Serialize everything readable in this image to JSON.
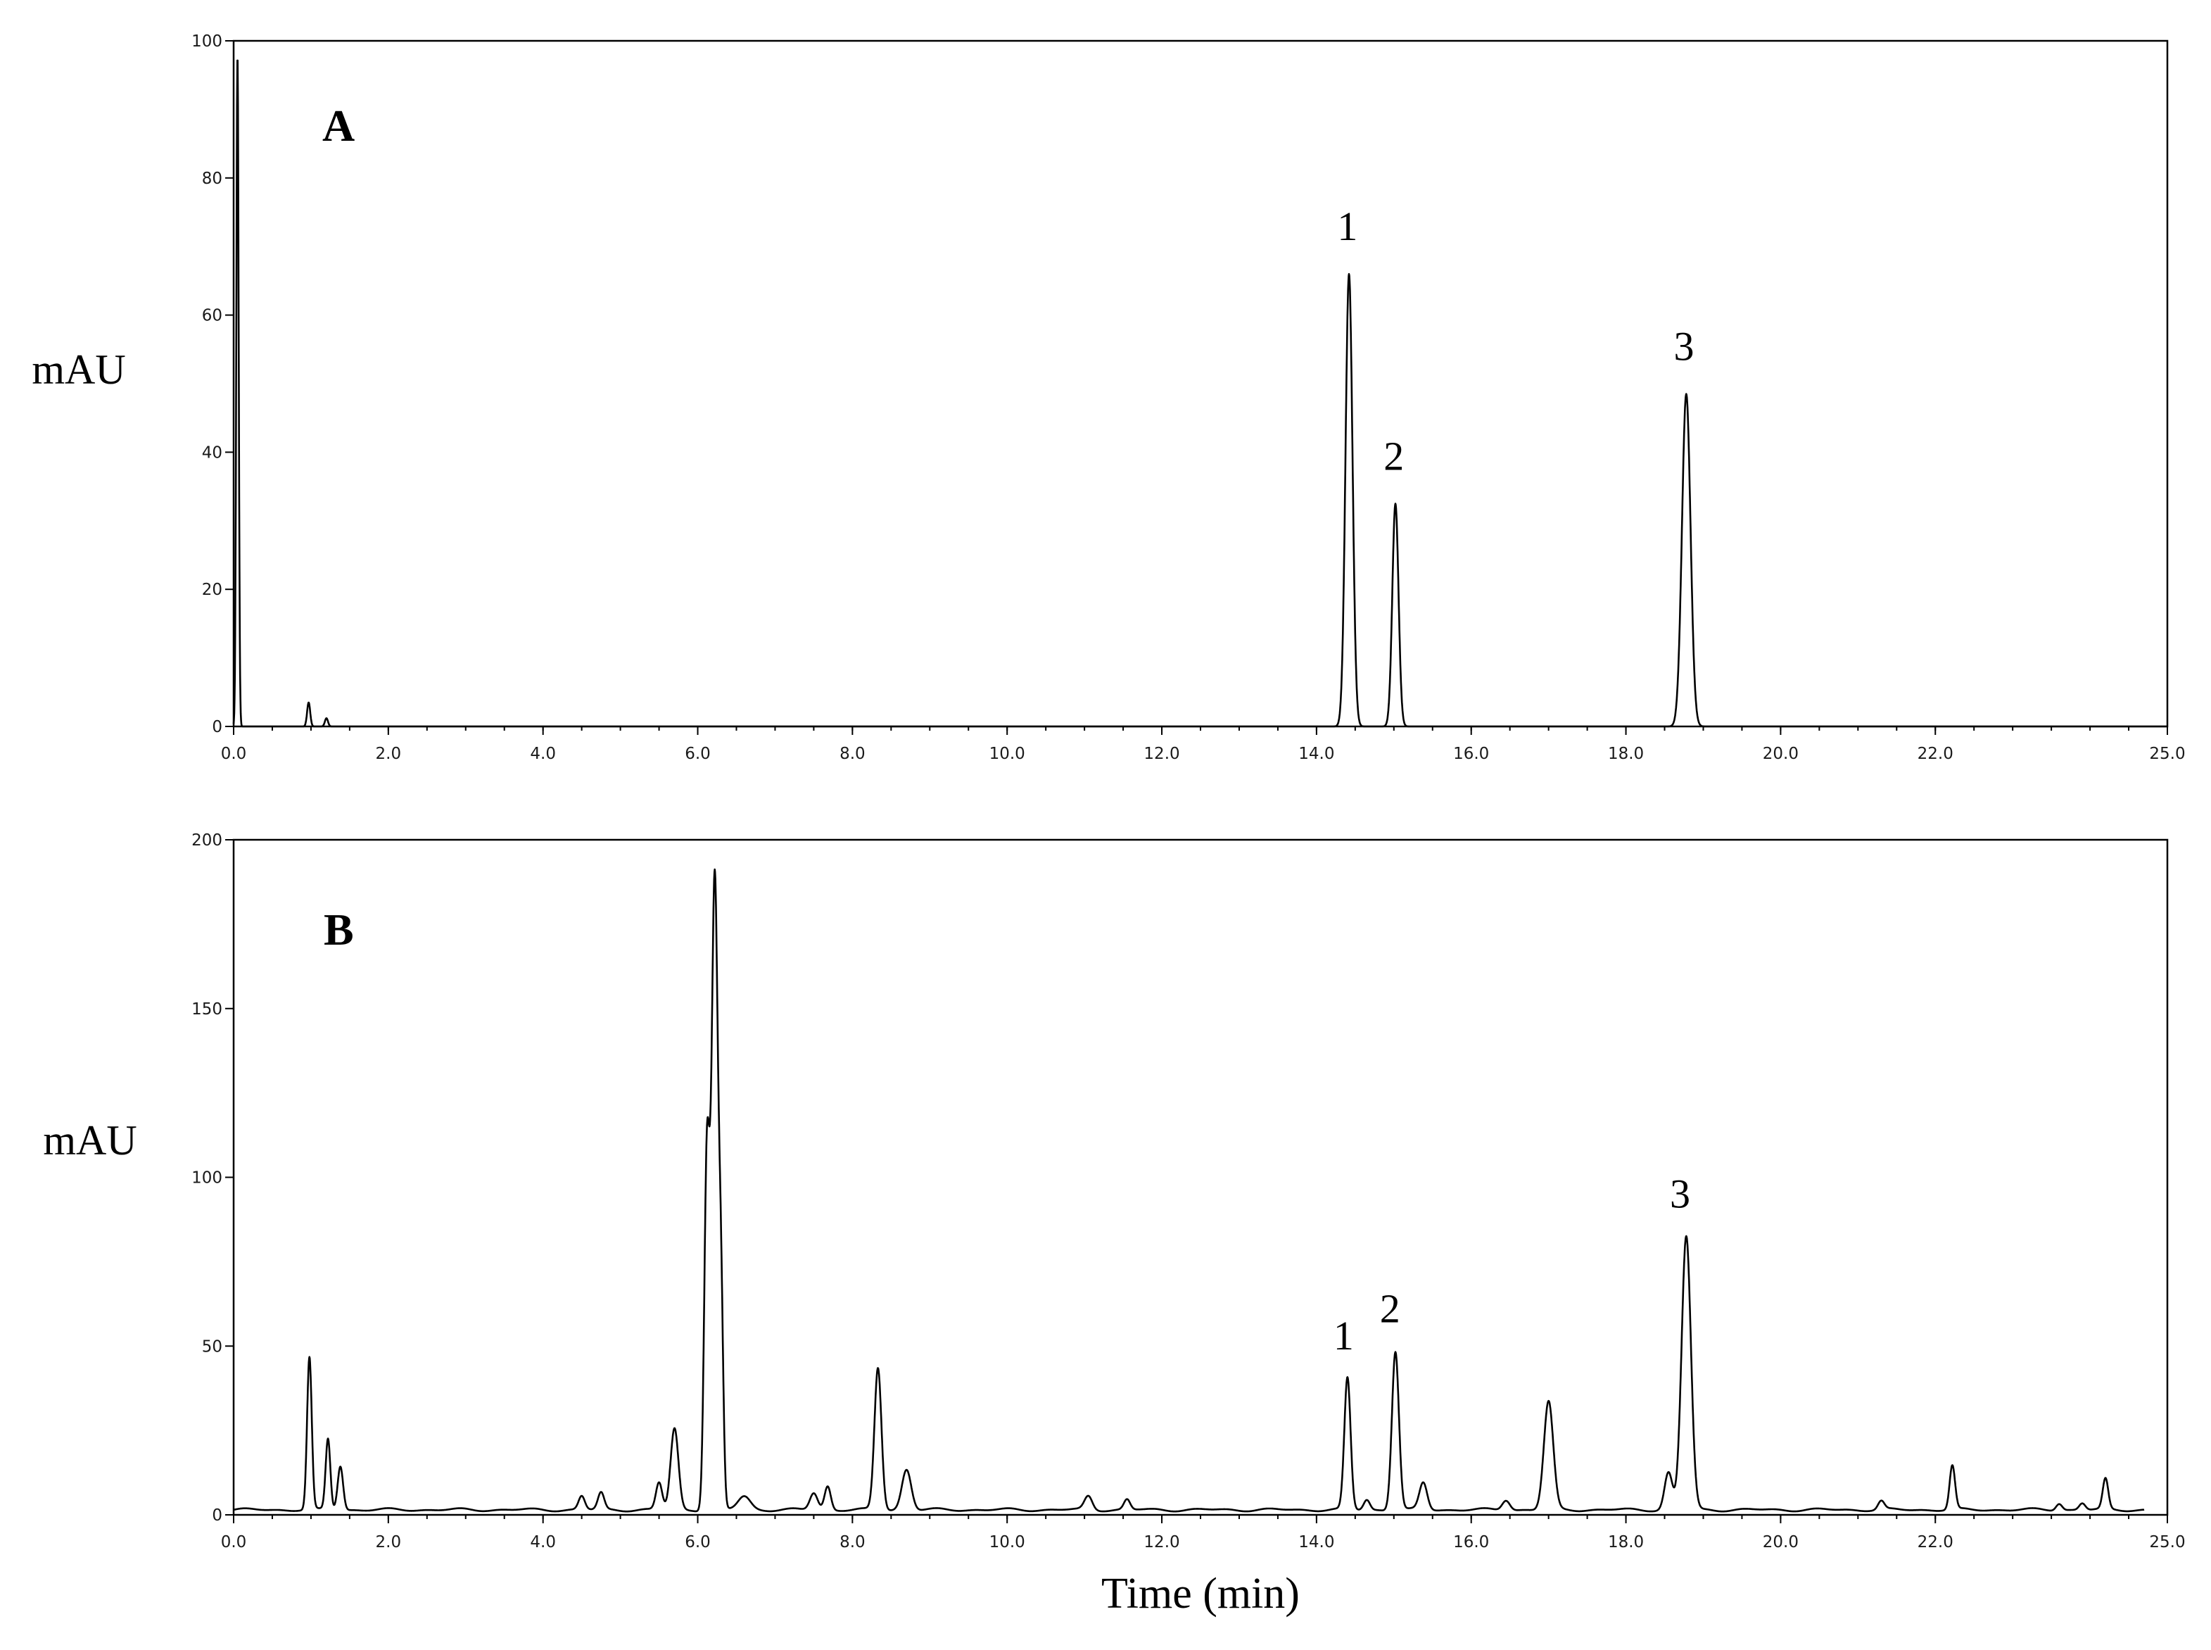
{
  "chart_data": [
    {
      "type": "line",
      "panel_label": "A",
      "ylabel": "mAU",
      "xlabel": "",
      "xlim": [
        0,
        25
      ],
      "ylim": [
        0,
        100
      ],
      "x_ticks": [
        "0.0",
        "2.0",
        "4.0",
        "6.0",
        "8.0",
        "10.0",
        "12.0",
        "14.0",
        "16.0",
        "18.0",
        "20.0",
        "22.0",
        "25.0"
      ],
      "x_tick_values": [
        0,
        2,
        4,
        6,
        8,
        10,
        12,
        14,
        16,
        18,
        20,
        22,
        25
      ],
      "y_ticks": [
        "0",
        "20",
        "40",
        "60",
        "80",
        "100"
      ],
      "y_tick_values": [
        0,
        20,
        40,
        60,
        80,
        100
      ],
      "baseline": 0,
      "peaks": [
        {
          "rt": 0.05,
          "height": 98,
          "width": 0.015
        },
        {
          "rt": 0.97,
          "height": 3.5,
          "width": 0.02
        },
        {
          "rt": 1.2,
          "height": 1.2,
          "width": 0.02
        },
        {
          "rt": 14.42,
          "height": 66,
          "width": 0.045
        },
        {
          "rt": 15.02,
          "height": 32.5,
          "width": 0.04
        },
        {
          "rt": 18.78,
          "height": 48.5,
          "width": 0.055
        }
      ],
      "peak_labels": [
        {
          "text": "1",
          "x": 14.4,
          "y": 66
        },
        {
          "text": "2",
          "x": 15.0,
          "y": 32.5
        },
        {
          "text": "3",
          "x": 18.75,
          "y": 48.5
        }
      ]
    },
    {
      "type": "line",
      "panel_label": "B",
      "ylabel": "mAU",
      "xlabel": "Time (min)",
      "xlim": [
        0,
        25
      ],
      "ylim": [
        0,
        200
      ],
      "x_ticks": [
        "0.0",
        "2.0",
        "4.0",
        "6.0",
        "8.0",
        "10.0",
        "12.0",
        "14.0",
        "16.0",
        "18.0",
        "20.0",
        "22.0",
        "25.0"
      ],
      "x_tick_values": [
        0,
        2,
        4,
        6,
        8,
        10,
        12,
        14,
        16,
        18,
        20,
        22,
        25
      ],
      "y_ticks": [
        "0",
        "50",
        "100",
        "150",
        "200"
      ],
      "y_tick_values": [
        0,
        50,
        100,
        150,
        200
      ],
      "baseline": 1.5,
      "peaks": [
        {
          "rt": 0.98,
          "height": 45,
          "width": 0.03
        },
        {
          "rt": 1.22,
          "height": 21,
          "width": 0.03
        },
        {
          "rt": 1.38,
          "height": 13,
          "width": 0.035
        },
        {
          "rt": 4.5,
          "height": 4,
          "width": 0.04
        },
        {
          "rt": 4.75,
          "height": 5,
          "width": 0.04
        },
        {
          "rt": 5.5,
          "height": 8,
          "width": 0.04
        },
        {
          "rt": 5.7,
          "height": 24,
          "width": 0.05
        },
        {
          "rt": 6.12,
          "height": 106,
          "width": 0.035
        },
        {
          "rt": 6.22,
          "height": 186,
          "width": 0.04
        },
        {
          "rt": 6.3,
          "height": 60,
          "width": 0.03
        },
        {
          "rt": 6.6,
          "height": 4,
          "width": 0.08
        },
        {
          "rt": 7.5,
          "height": 5,
          "width": 0.05
        },
        {
          "rt": 7.68,
          "height": 7,
          "width": 0.04
        },
        {
          "rt": 8.33,
          "height": 42,
          "width": 0.045
        },
        {
          "rt": 8.7,
          "height": 12,
          "width": 0.06
        },
        {
          "rt": 11.05,
          "height": 4,
          "width": 0.05
        },
        {
          "rt": 11.55,
          "height": 3,
          "width": 0.04
        },
        {
          "rt": 14.4,
          "height": 39,
          "width": 0.04
        },
        {
          "rt": 14.65,
          "height": 3,
          "width": 0.04
        },
        {
          "rt": 15.02,
          "height": 47,
          "width": 0.045
        },
        {
          "rt": 15.38,
          "height": 8,
          "width": 0.05
        },
        {
          "rt": 16.45,
          "height": 3,
          "width": 0.05
        },
        {
          "rt": 17.0,
          "height": 32,
          "width": 0.06
        },
        {
          "rt": 18.55,
          "height": 11,
          "width": 0.05
        },
        {
          "rt": 18.78,
          "height": 81,
          "width": 0.06
        },
        {
          "rt": 21.3,
          "height": 2.5,
          "width": 0.04
        },
        {
          "rt": 22.22,
          "height": 13,
          "width": 0.035
        },
        {
          "rt": 23.6,
          "height": 2,
          "width": 0.04
        },
        {
          "rt": 23.9,
          "height": 2,
          "width": 0.04
        },
        {
          "rt": 24.2,
          "height": 9,
          "width": 0.035
        }
      ],
      "peak_labels": [
        {
          "text": "1",
          "x": 14.35,
          "y": 39
        },
        {
          "text": "2",
          "x": 14.95,
          "y": 47
        },
        {
          "text": "3",
          "x": 18.7,
          "y": 81
        }
      ]
    }
  ]
}
